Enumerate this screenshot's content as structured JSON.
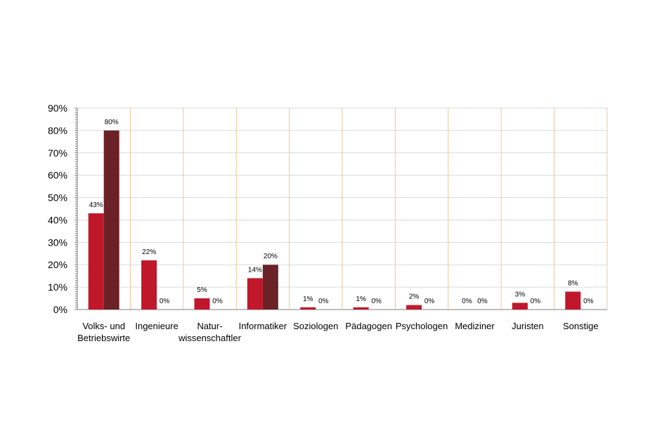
{
  "chart_data": {
    "type": "bar",
    "title": "",
    "xlabel": "",
    "ylabel": "",
    "ylim": [
      0,
      90
    ],
    "ytick_step": 10,
    "y_tick_labels": [
      "0%",
      "10%",
      "20%",
      "30%",
      "40%",
      "50%",
      "60%",
      "70%",
      "80%",
      "90%"
    ],
    "grid": true,
    "legend": "none",
    "categories": [
      [
        "Volks- und",
        "Betriebswirte"
      ],
      [
        "Ingenieure"
      ],
      [
        "Natur-",
        "wissenschaftler"
      ],
      [
        "Informatiker"
      ],
      [
        "Soziologen"
      ],
      [
        "Pädagogen"
      ],
      [
        "Psychologen"
      ],
      [
        "Mediziner"
      ],
      [
        "Juristen"
      ],
      [
        "Sonstige"
      ]
    ],
    "series": [
      {
        "values": [
          43,
          22,
          5,
          14,
          1,
          1,
          2,
          0,
          3,
          8
        ],
        "labels": [
          "43%",
          "22%",
          "5%",
          "14%",
          "1%",
          "1%",
          "2%",
          "0%",
          "3%",
          "8%"
        ],
        "color": "#c0182a"
      },
      {
        "values": [
          80,
          0,
          0,
          20,
          0,
          0,
          0,
          0,
          0,
          0
        ],
        "labels": [
          "80%",
          "0%",
          "0%",
          "20%",
          "0%",
          "0%",
          "0%",
          "0%",
          "0%",
          "0%"
        ],
        "color": "#6b2226"
      }
    ],
    "colors": {
      "grid": "#d9d9d9",
      "separator": "#f5c59a",
      "axis": "#7f7f7f",
      "text": "#000000"
    }
  }
}
